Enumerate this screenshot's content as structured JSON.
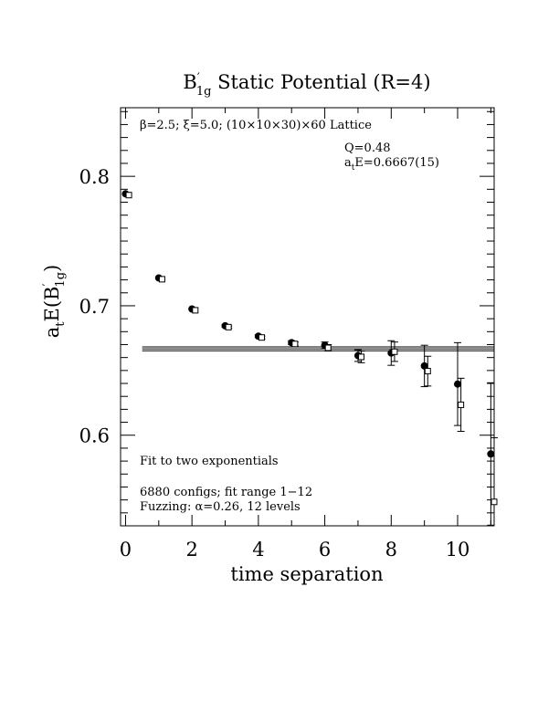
{
  "chart_data": {
    "type": "scatter",
    "title": {
      "prefix": "B",
      "prime": "′",
      "sub": "1g",
      "rest": " Static Potential (R=4)"
    },
    "xlabel": "time separation",
    "ylabel": {
      "a": "a",
      "a_sub": "t",
      "mid": "E(B",
      "prime": "′",
      "sub": "1g",
      "close": ")"
    },
    "xlim": [
      -0.15,
      11.1
    ],
    "ylim": [
      0.53,
      0.853
    ],
    "x_ticks": [
      0,
      2,
      4,
      6,
      8,
      10
    ],
    "x_tick_labels": [
      "0",
      "2",
      "4",
      "6",
      "8",
      "10"
    ],
    "y_ticks": [
      0.6,
      0.7,
      0.8
    ],
    "y_tick_labels": [
      "0.6",
      "0.7",
      "0.8"
    ],
    "annotations": {
      "lattice": "β=2.5; ξ=5.0; (10×10×30)×60 Lattice",
      "q": "Q=0.48",
      "energy": {
        "a": "a",
        "sub": "t",
        "rest": "E=0.6667(15)"
      },
      "fit": "Fit to two exponentials",
      "configs": "6880 configs; fit range 1−12",
      "fuzzing": "Fuzzing: α=0.26, 12 levels"
    },
    "fit_band": {
      "x_start": 0.5,
      "x_end": 11.1,
      "center": 0.6667,
      "upper": 0.6682,
      "lower": 0.6652
    },
    "series": [
      {
        "marker": "filled-circle",
        "x": [
          0,
          1,
          2,
          3,
          4,
          5,
          6,
          7,
          8,
          9,
          10,
          11
        ],
        "y": [
          0.7865,
          0.7215,
          0.6975,
          0.6845,
          0.6765,
          0.6715,
          0.6695,
          0.6615,
          0.6635,
          0.6535,
          0.6395,
          0.5855
        ],
        "err": [
          0.0005,
          0.0005,
          0.0007,
          0.0009,
          0.0011,
          0.0015,
          0.0025,
          0.0045,
          0.0095,
          0.016,
          0.032,
          0.055
        ]
      },
      {
        "marker": "open-square",
        "x": [
          0.1,
          1.1,
          2.1,
          3.1,
          4.1,
          5.1,
          6.1,
          7.1,
          8.1,
          9.1,
          10.1,
          11.1
        ],
        "y": [
          0.7855,
          0.7205,
          0.6965,
          0.6835,
          0.6755,
          0.6705,
          0.6675,
          0.6605,
          0.6645,
          0.6495,
          0.6235,
          0.5485
        ],
        "err": [
          0.0005,
          0.0005,
          0.0007,
          0.0009,
          0.0011,
          0.0015,
          0.0025,
          0.0045,
          0.0075,
          0.0115,
          0.0205,
          0.0495
        ]
      }
    ]
  }
}
